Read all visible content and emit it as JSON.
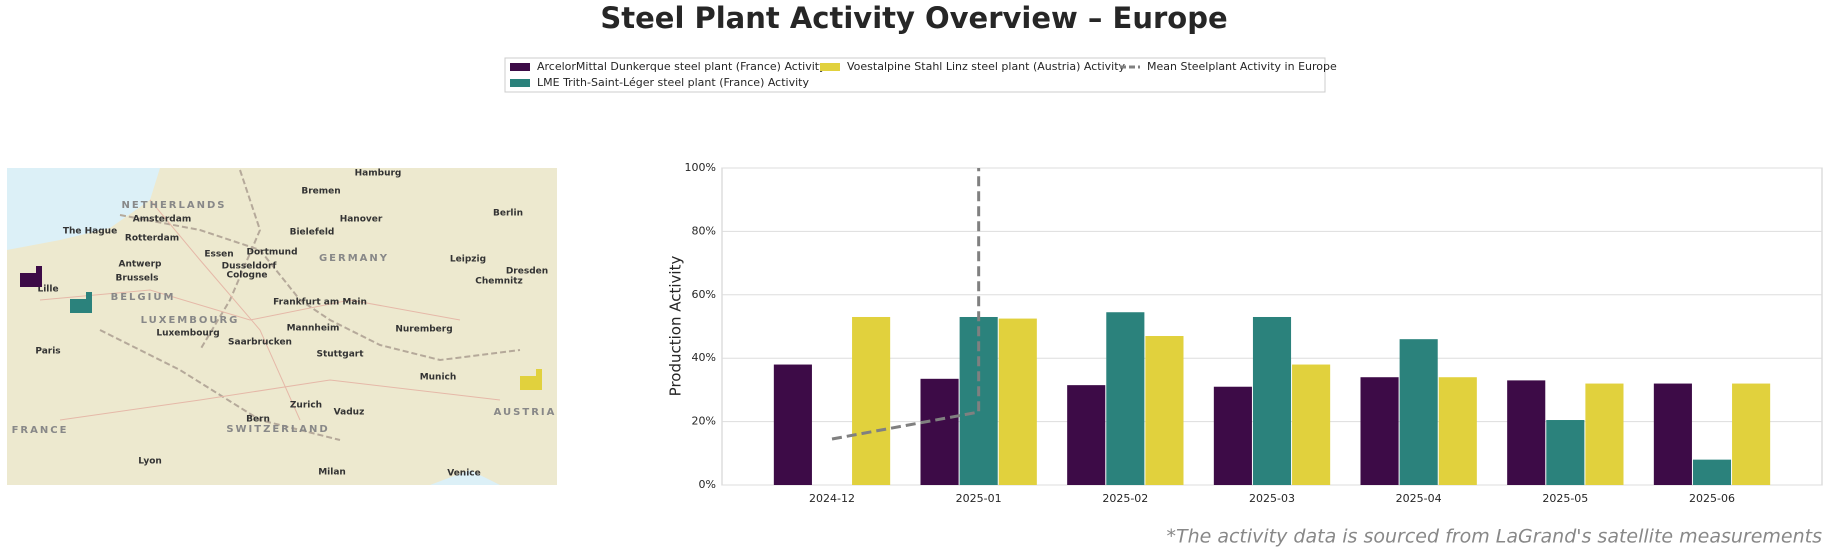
{
  "chart_data": {
    "type": "bar",
    "title": "Steel Plant Activity Overview – Europe",
    "ylabel": "Production Activity",
    "note": "*The activity data is sourced from LaGrand's satellite measurements",
    "categories": [
      "2024-12",
      "2025-01",
      "2025-02",
      "2025-03",
      "2025-04",
      "2025-05",
      "2025-06"
    ],
    "series": [
      {
        "name": "ArcelorMittal Dunkerque steel plant (France) Activity",
        "color": "#3d0b47",
        "values": [
          38,
          33.5,
          31.5,
          31,
          34,
          33,
          32
        ]
      },
      {
        "name": "LME Trith-Saint-Léger steel plant (France) Activity",
        "color": "#2b827c",
        "values": [
          null,
          53,
          54.5,
          53,
          46,
          20.5,
          8
        ]
      },
      {
        "name": "Voestalpine Stahl Linz steel plant (Austria) Activity",
        "color": "#e1d13d",
        "values": [
          53,
          52.5,
          47,
          38,
          34,
          32,
          32
        ]
      },
      {
        "name": "Mean Steelplant Activity in Europe",
        "color": "#808080",
        "type": "line",
        "dashed": true,
        "x": [
          "2024-12",
          "2025-01",
          "2025-01"
        ],
        "values": [
          14.5,
          23,
          100
        ]
      }
    ],
    "ylim": [
      0,
      100
    ],
    "yticks": [
      {
        "value": 0,
        "label": "0%"
      },
      {
        "value": 20,
        "label": "20%"
      },
      {
        "value": 40,
        "label": "40%"
      },
      {
        "value": 60,
        "label": "60%"
      },
      {
        "value": 80,
        "label": "80%"
      },
      {
        "value": 100,
        "label": "100%"
      }
    ],
    "grid": true,
    "legend": "top",
    "map": {
      "labels": [
        "Hamburg",
        "Bremen",
        "NETHERLANDS",
        "Amsterdam",
        "Hanover",
        "Berlin",
        "The Hague",
        "Rotterdam",
        "Bielefeld",
        "Essen",
        "Dortmund",
        "GERMANY",
        "Leipzig",
        "Antwerp",
        "Dusseldorf",
        "Cologne",
        "Dresden",
        "Brussels",
        "Lille",
        "BELGIUM",
        "Chemnitz",
        "Frankfurt am Main",
        "LUXEMBOURG",
        "Luxembourg",
        "Mannheim",
        "Nuremberg",
        "Saarbrucken",
        "Paris",
        "Stuttgart",
        "Munich",
        "Zurich",
        "Vaduz",
        "Bern",
        "SWITZERLAND",
        "AUSTRIA",
        "FRANCE",
        "Lyon",
        "Milan",
        "Venice"
      ]
    }
  }
}
